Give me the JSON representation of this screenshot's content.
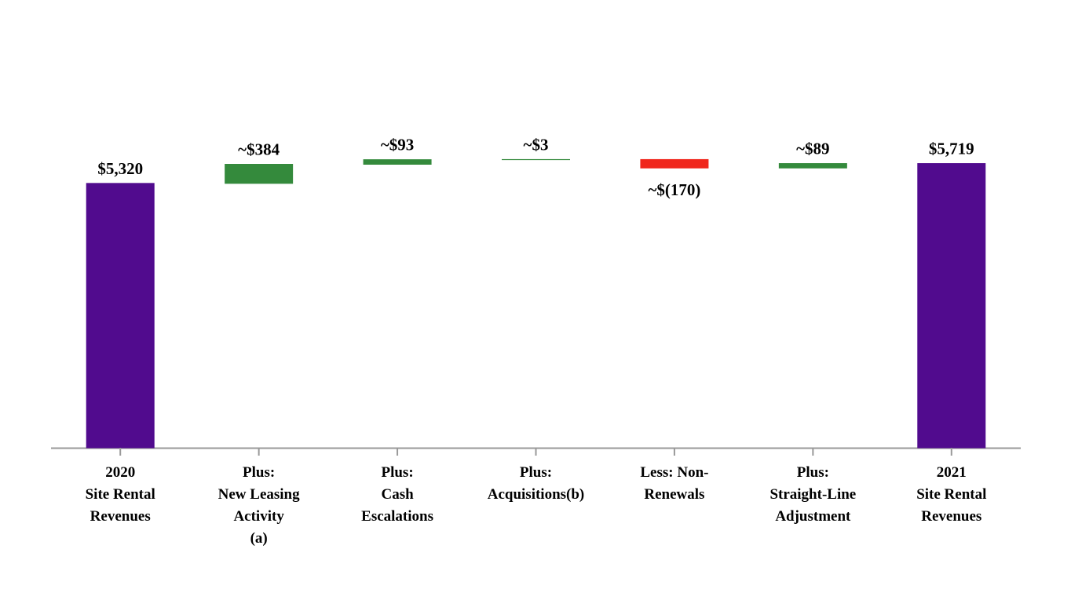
{
  "chart_data": {
    "type": "waterfall",
    "categories": [
      [
        "2020",
        "Site Rental",
        "Revenues"
      ],
      [
        "Plus:",
        "New Leasing",
        "Activity",
        "(a)"
      ],
      [
        "Plus:",
        "Cash",
        "Escalations"
      ],
      [
        "Plus:",
        "Acquisitions(b)"
      ],
      [
        "Less: Non-",
        "Renewals"
      ],
      [
        "Plus:",
        "Straight-Line",
        "Adjustment"
      ],
      [
        "2021",
        "Site Rental",
        "Revenues"
      ]
    ],
    "values": [
      5320,
      384,
      93,
      3,
      -170,
      89,
      5719
    ],
    "value_labels": [
      "$5,320",
      "~$384",
      "~$93",
      "~$3",
      "~$(170)",
      "~$89",
      "$5,719"
    ],
    "measure": [
      "absolute",
      "relative",
      "relative",
      "relative",
      "relative",
      "relative",
      "total"
    ],
    "colors": [
      "#510b8e",
      "#348a3c",
      "#348a3c",
      "#348a3c",
      "#f0271c",
      "#348a3c",
      "#510b8e"
    ],
    "ylim": [
      0,
      8000
    ]
  }
}
